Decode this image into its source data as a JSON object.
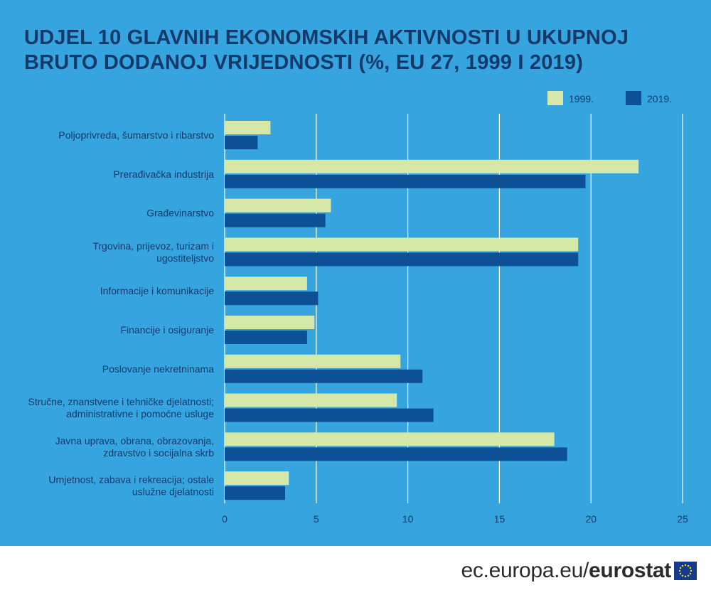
{
  "chart_data": {
    "type": "bar",
    "orientation": "horizontal",
    "title": "UDJEL 10 GLAVNIH EKONOMSKIH AKTIVNOSTI U UKUPNOJ BRUTO DODANOJ VRIJEDNOSTI (%, EU 27, 1999 I 2019)",
    "categories": [
      [
        "Poljoprivreda, šumarstvo i ribarstvo"
      ],
      [
        "Prerađivačka industrija"
      ],
      [
        "Građevinarstvo"
      ],
      [
        "Trgovina, prijevoz, turizam i",
        "ugostiteljstvo"
      ],
      [
        "Informacije i komunikacije"
      ],
      [
        "Financije i osiguranje"
      ],
      [
        "Poslovanje nekretninama"
      ],
      [
        "Stručne, znanstvene i tehničke djelatnosti;",
        "administrativne i pomoćne usluge"
      ],
      [
        "Javna uprava, obrana, obrazovanja,",
        "zdravstvo i socijalna skrb"
      ],
      [
        "Umjetnost, zabava i rekreacija; ostale",
        "uslužne djelatnosti"
      ]
    ],
    "series": [
      {
        "name": "1999.",
        "color": "#d6e8a8",
        "values": [
          2.5,
          22.6,
          5.8,
          19.3,
          4.5,
          4.9,
          9.6,
          9.4,
          18.0,
          3.5
        ]
      },
      {
        "name": "2019.",
        "color": "#0d5096",
        "values": [
          1.8,
          19.7,
          5.5,
          19.3,
          5.1,
          4.5,
          10.8,
          11.4,
          18.7,
          3.3
        ]
      }
    ],
    "xlim": [
      0,
      25
    ],
    "xticks": [
      0,
      5,
      10,
      15,
      20,
      25
    ],
    "grid": true,
    "legend_position": "top-right"
  },
  "footer": {
    "site": "ec.europa.eu/",
    "brand": "eurostat"
  },
  "colors": {
    "background": "#36a5df",
    "text": "#14396a"
  }
}
